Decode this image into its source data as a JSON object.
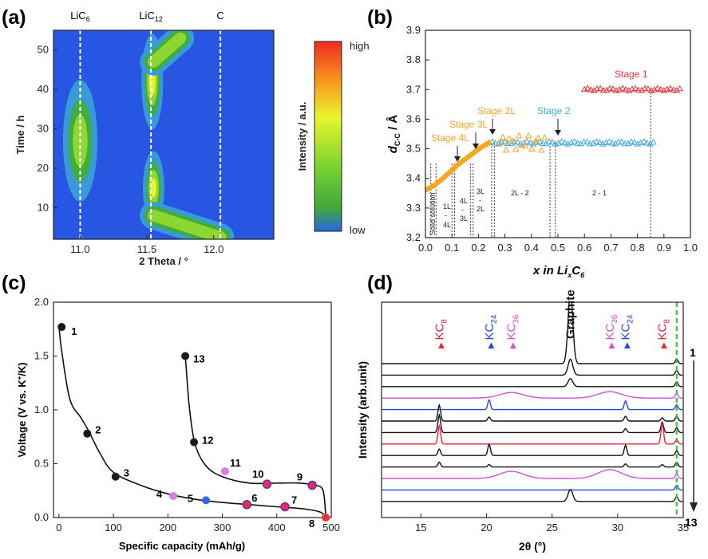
{
  "panels": {
    "a": {
      "label": "(a)",
      "xlabel": "2 Theta / °",
      "ylabel": "Time / h",
      "xticks": [
        "11.0",
        "11.5",
        "12.0"
      ],
      "yticks": [
        "10",
        "20",
        "30",
        "40",
        "50"
      ],
      "phase_lines": [
        {
          "label": "LiC",
          "sub": "6",
          "two_theta": 11.0
        },
        {
          "label": "LiC",
          "sub": "12",
          "two_theta": 11.53
        },
        {
          "label": "C",
          "sub": "",
          "two_theta": 12.05
        }
      ],
      "colorbar_label": "Intensity / a.u.",
      "colorbar_high": "high",
      "colorbar_low": "low"
    },
    "b": {
      "label": "(b)",
      "ylabel_main": "d",
      "ylabel_sub": "C-C",
      "ylabel_unit": " / Å",
      "xlabel_pre": "x in Li",
      "xlabel_x": "x",
      "xlabel_post": "C",
      "xlabel_sub": "6",
      "xticks": [
        "0.0",
        "0.1",
        "0.2",
        "0.3",
        "0.4",
        "0.5",
        "0.6",
        "0.7",
        "0.8",
        "0.9",
        "1.0"
      ],
      "yticks": [
        "3.2",
        "3.3",
        "3.4",
        "3.5",
        "3.6",
        "3.7",
        "3.8",
        "3.9"
      ],
      "stage_labels": [
        "Stage 1",
        "Stage 2",
        "Stage 2L",
        "Stage 3L",
        "Stage 4L"
      ],
      "region_labels": {
        "solid": "Solid solution",
        "r1": [
          "1L",
          "-",
          "4L"
        ],
        "r2": [
          "4L",
          "-",
          "3L"
        ],
        "r3": [
          "3L",
          "-",
          "2L"
        ],
        "r4": "2L - 2",
        "r5": "2 - 1"
      }
    },
    "c": {
      "label": "(c)",
      "xlabel": "Specific capacity (mAh/g)",
      "ylabel": "Voltage (V vs. K",
      "ylabel_sup": "+",
      "ylabel_end": "/K)",
      "xticks": [
        "0",
        "100",
        "200",
        "300",
        "400",
        "500"
      ],
      "yticks": [
        "0.0",
        "0.5",
        "1.0",
        "1.5",
        "2.0"
      ]
    },
    "d": {
      "label": "(d)",
      "xlabel": "2θ (°)",
      "ylabel": "Intensity (arb.unit)",
      "xticks": [
        "15",
        "20",
        "25",
        "30",
        "35"
      ],
      "scan_first": "1",
      "scan_last": "13",
      "peak_labels": [
        {
          "text": "KC",
          "sub": "8",
          "two_theta": 16.4,
          "color": "#e8223b"
        },
        {
          "text": "KC",
          "sub": "24",
          "two_theta": 20.2,
          "color": "#2346d6"
        },
        {
          "text": "KC",
          "sub": "36",
          "two_theta": 21.9,
          "color": "#d24fd6"
        },
        {
          "text": "Graphite",
          "sub": "",
          "two_theta": 26.4,
          "color": "#111111"
        },
        {
          "text": "KC",
          "sub": "36",
          "two_theta": 29.4,
          "color": "#d24fd6"
        },
        {
          "text": "KC",
          "sub": "24",
          "two_theta": 30.6,
          "color": "#2346d6"
        },
        {
          "text": "KC",
          "sub": "8",
          "two_theta": 33.4,
          "color": "#e8223b"
        }
      ]
    }
  },
  "chart_data": [
    {
      "type": "heatmap",
      "panel": "a",
      "title": "",
      "xlabel": "2 Theta / °",
      "ylabel": "Time / h",
      "xlim": [
        10.8,
        12.45
      ],
      "ylim": [
        2,
        55
      ],
      "blobs": [
        {
          "x": 11.0,
          "y": 30,
          "sx": 0.035,
          "sy": 3.5,
          "peak": 1.0
        },
        {
          "x": 11.0,
          "y": 27,
          "sx": 0.05,
          "sy": 6,
          "peak": 0.55
        },
        {
          "x": 11.54,
          "y": 42,
          "sx": 0.03,
          "sy": 4.5,
          "peak": 0.75
        },
        {
          "x": 11.55,
          "y": 15,
          "sx": 0.03,
          "sy": 3.5,
          "peak": 0.7
        }
      ],
      "bands": [
        {
          "from": [
            11.55,
            8
          ],
          "to": [
            12.05,
            2.5
          ],
          "width": 0.04,
          "peak": 0.55
        },
        {
          "from": [
            11.55,
            47
          ],
          "to": [
            11.75,
            53
          ],
          "width": 0.04,
          "peak": 0.55
        }
      ]
    },
    {
      "type": "scatter",
      "panel": "b",
      "xlabel": "x in LixC6",
      "ylabel": "dC-C / Å",
      "xlim": [
        0,
        1.0
      ],
      "ylim": [
        3.2,
        3.9
      ],
      "series": [
        {
          "name": "Stage 1",
          "color": "#e8323c",
          "marker": "triangle",
          "x_range": [
            0.6,
            0.96
          ],
          "y": 3.7
        },
        {
          "name": "Stage 2",
          "color": "#49a9e0",
          "marker": "triangle",
          "x_range": [
            0.24,
            0.86
          ],
          "y": 3.52
        },
        {
          "name": "Stage 2L",
          "color": "#f5a623",
          "marker": "triangle",
          "x_range": [
            0.28,
            0.45
          ],
          "y": 3.52
        },
        {
          "name": "Staging 4L-2L",
          "color": "#f5a623",
          "marker": "circle",
          "x": [
            0.0,
            0.03,
            0.06,
            0.09,
            0.12,
            0.15,
            0.18,
            0.21,
            0.24
          ],
          "y": [
            3.36,
            3.375,
            3.395,
            3.42,
            3.445,
            3.465,
            3.485,
            3.505,
            3.52
          ]
        }
      ],
      "boundaries_x": [
        0.02,
        0.04,
        0.1,
        0.11,
        0.17,
        0.18,
        0.25,
        0.26,
        0.47,
        0.49,
        0.85
      ]
    },
    {
      "type": "line",
      "panel": "c",
      "xlabel": "Specific capacity (mAh/g)",
      "ylabel": "Voltage (V vs. K+/K)",
      "xlim": [
        -10,
        500
      ],
      "ylim": [
        0,
        2.0
      ],
      "discharge": {
        "x": [
          0,
          5,
          20,
          40,
          55,
          75,
          100,
          150,
          200,
          250,
          300,
          350,
          400,
          450,
          480,
          490
        ],
        "y": [
          1.78,
          1.55,
          1.1,
          0.93,
          0.8,
          0.6,
          0.42,
          0.3,
          0.22,
          0.17,
          0.14,
          0.12,
          0.1,
          0.08,
          0.05,
          0.0
        ]
      },
      "charge": {
        "x": [
          490,
          485,
          470,
          440,
          400,
          350,
          300,
          270,
          250,
          240,
          235,
          232
        ],
        "y": [
          0.0,
          0.25,
          0.3,
          0.32,
          0.32,
          0.32,
          0.38,
          0.48,
          0.68,
          1.0,
          1.3,
          1.5
        ]
      },
      "points": [
        {
          "label": "1",
          "x": 5,
          "y": 1.77,
          "color": "#1a1a1a"
        },
        {
          "label": "2",
          "x": 52,
          "y": 0.78,
          "color": "#1a1a1a"
        },
        {
          "label": "3",
          "x": 104,
          "y": 0.38,
          "color": "#1a1a1a"
        },
        {
          "label": "4",
          "x": 210,
          "y": 0.2,
          "color": "#e17be0"
        },
        {
          "label": "5",
          "x": 270,
          "y": 0.16,
          "color": "#3a66e0"
        },
        {
          "label": "6",
          "x": 345,
          "y": 0.12,
          "color": "#e8323c",
          "ring": "#5b2bd6"
        },
        {
          "label": "7",
          "x": 415,
          "y": 0.1,
          "color": "#e8323c",
          "ring": "#5b2bd6"
        },
        {
          "label": "8",
          "x": 490,
          "y": 0.0,
          "color": "#e8323c"
        },
        {
          "label": "9",
          "x": 465,
          "y": 0.3,
          "color": "#e8323c",
          "ring": "#5b2bd6"
        },
        {
          "label": "10",
          "x": 382,
          "y": 0.31,
          "color": "#e8323c",
          "ring": "#5b2bd6"
        },
        {
          "label": "11",
          "x": 305,
          "y": 0.43,
          "color": "#e17be0"
        },
        {
          "label": "12",
          "x": 248,
          "y": 0.7,
          "color": "#1a1a1a"
        },
        {
          "label": "13",
          "x": 232,
          "y": 1.5,
          "color": "#1a1a1a"
        }
      ]
    },
    {
      "type": "line",
      "panel": "d",
      "xlabel": "2θ (°)",
      "ylabel": "Intensity (arb.unit)",
      "xlim": [
        12,
        35
      ],
      "scans": [
        {
          "scan": 1,
          "color": "#111111",
          "peaks": [
            [
              26.4,
              9.0
            ],
            [
              34.5,
              0.6
            ]
          ]
        },
        {
          "scan": 2,
          "color": "#111111",
          "peaks": [
            [
              26.4,
              2.0
            ],
            [
              34.5,
              0.6
            ]
          ]
        },
        {
          "scan": 3,
          "color": "#111111",
          "peaks": [
            [
              26.4,
              1.0
            ],
            [
              34.5,
              0.6
            ]
          ]
        },
        {
          "scan": 4,
          "color": "#d24fd6",
          "peaks": [
            [
              21.9,
              0.7
            ],
            [
              29.4,
              0.8
            ],
            [
              34.5,
              0.6
            ]
          ]
        },
        {
          "scan": 5,
          "color": "#2346d6",
          "peaks": [
            [
              20.2,
              1.2
            ],
            [
              30.6,
              1.1
            ],
            [
              34.5,
              0.6
            ]
          ]
        },
        {
          "scan": 6,
          "color": "#111111",
          "peaks": [
            [
              16.4,
              2.0
            ],
            [
              20.2,
              0.5
            ],
            [
              30.6,
              0.6
            ],
            [
              33.4,
              0.4
            ],
            [
              34.5,
              0.6
            ]
          ]
        },
        {
          "scan": 7,
          "color": "#111111",
          "peaks": [
            [
              16.4,
              2.2
            ],
            [
              30.6,
              0.5
            ],
            [
              33.4,
              1.3
            ],
            [
              34.5,
              0.6
            ]
          ]
        },
        {
          "scan": 8,
          "color": "#e8223b",
          "peaks": [
            [
              16.4,
              2.3
            ],
            [
              33.4,
              2.6
            ],
            [
              34.5,
              0.6
            ]
          ]
        },
        {
          "scan": 9,
          "color": "#111111",
          "peaks": [
            [
              16.4,
              0.8
            ],
            [
              20.2,
              1.4
            ],
            [
              30.6,
              1.3
            ],
            [
              34.5,
              0.6
            ]
          ]
        },
        {
          "scan": 10,
          "color": "#111111",
          "peaks": [
            [
              16.4,
              0.6
            ],
            [
              20.2,
              0.3
            ],
            [
              30.6,
              0.4
            ],
            [
              33.4,
              0.3
            ],
            [
              34.5,
              0.6
            ]
          ]
        },
        {
          "scan": 11,
          "color": "#d24fd6",
          "peaks": [
            [
              21.9,
              0.9
            ],
            [
              29.4,
              1.1
            ],
            [
              34.5,
              0.6
            ]
          ]
        },
        {
          "scan": 12,
          "color": "#2346d6",
          "peaks": [
            [
              34.5,
              0.6
            ]
          ]
        },
        {
          "scan": 13,
          "color": "#111111",
          "peaks": [
            [
              26.4,
              1.5
            ],
            [
              34.5,
              0.6
            ]
          ]
        }
      ],
      "marker_line_two_theta": 34.5
    }
  ]
}
